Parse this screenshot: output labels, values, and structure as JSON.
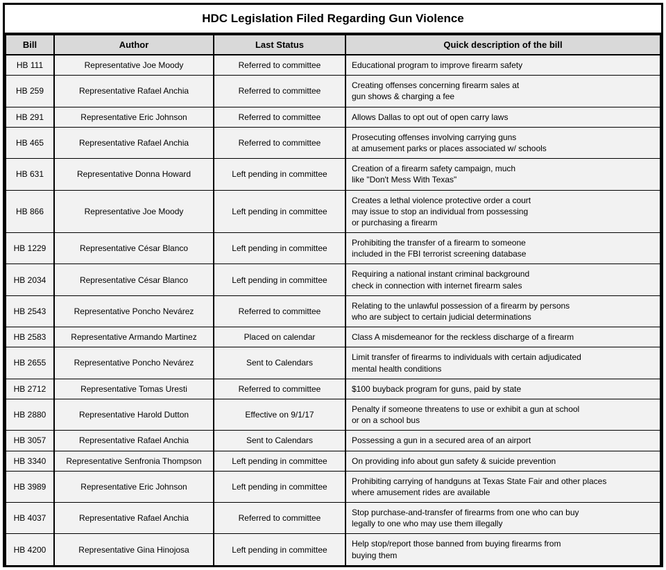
{
  "title": "HDC Legislation Filed Regarding Gun Violence",
  "columns": [
    "Bill",
    "Author",
    "Last Status",
    "Quick description of the bill"
  ],
  "rows": [
    {
      "bill": "HB 111",
      "author": "Representative Joe Moody",
      "status": "Referred to committee",
      "desc": "Educational program to improve firearm safety"
    },
    {
      "bill": "HB 259",
      "author": "Representative Rafael Anchia",
      "status": "Referred to committee",
      "desc": "Creating offenses concerning firearm sales at\ngun shows & charging a fee"
    },
    {
      "bill": "HB 291",
      "author": "Representative Eric Johnson",
      "status": "Referred to committee",
      "desc": "Allows Dallas to opt out of open carry laws"
    },
    {
      "bill": "HB 465",
      "author": "Representative Rafael Anchia",
      "status": "Referred to committee",
      "desc": "Prosecuting offenses involving carrying guns\nat amusement parks or places associated w/ schools"
    },
    {
      "bill": "HB 631",
      "author": "Representative Donna Howard",
      "status": "Left pending in committee",
      "desc": "Creation of a firearm safety campaign, much\nlike \"Don't Mess With Texas\""
    },
    {
      "bill": "HB 866",
      "author": "Representative Joe Moody",
      "status": "Left pending in committee",
      "desc": "Creates a lethal violence protective order a court\nmay issue to stop an individual from possessing\nor purchasing a firearm"
    },
    {
      "bill": "HB 1229",
      "author": "Representative César Blanco",
      "status": "Left pending in committee",
      "desc": "Prohibiting the transfer of a firearm to someone\nincluded in the FBI terrorist screening database"
    },
    {
      "bill": "HB 2034",
      "author": "Representative César Blanco",
      "status": "Left pending in committee",
      "desc": "Requiring a national instant criminal background\ncheck in connection with internet firearm sales"
    },
    {
      "bill": "HB 2543",
      "author": "Representative Poncho Nevárez",
      "status": "Referred to committee",
      "desc": "Relating to the unlawful possession of a firearm by persons\nwho are subject to certain judicial determinations"
    },
    {
      "bill": "HB 2583",
      "author": "Representative Armando Martinez",
      "status": "Placed on calendar",
      "desc": "Class A misdemeanor for the reckless discharge of a firearm"
    },
    {
      "bill": "HB 2655",
      "author": "Representative Poncho Nevárez",
      "status": "Sent to Calendars",
      "desc": "Limit transfer of firearms to individuals with certain adjudicated\nmental health conditions"
    },
    {
      "bill": "HB 2712",
      "author": "Representative Tomas Uresti",
      "status": "Referred to committee",
      "desc": "$100 buyback program for guns, paid by state"
    },
    {
      "bill": "HB 2880",
      "author": "Representative Harold Dutton",
      "status": "Effective on 9/1/17",
      "desc": "Penalty if someone threatens to use or exhibit a gun at school\nor on a school bus"
    },
    {
      "bill": "HB 3057",
      "author": "Representative Rafael Anchia",
      "status": "Sent to Calendars",
      "desc": "Possessing a gun in a secured area of an airport"
    },
    {
      "bill": "HB 3340",
      "author": "Representative Senfronia Thompson",
      "status": "Left pending in committee",
      "desc": "On providing info about gun safety & suicide prevention"
    },
    {
      "bill": "HB 3989",
      "author": "Representative Eric Johnson",
      "status": "Left pending in committee",
      "desc": "Prohibiting carrying of handguns at Texas State Fair and other places\nwhere amusement rides are available"
    },
    {
      "bill": "HB 4037",
      "author": "Representative Rafael Anchia",
      "status": "Referred to committee",
      "desc": "Stop purchase-and-transfer of firearms from one who can buy\nlegally to one who may use them illegally"
    },
    {
      "bill": "HB 4200",
      "author": "Representative Gina Hinojosa",
      "status": "Left pending in committee",
      "desc": "Help stop/report those banned from buying firearms from\nbuying them"
    }
  ]
}
